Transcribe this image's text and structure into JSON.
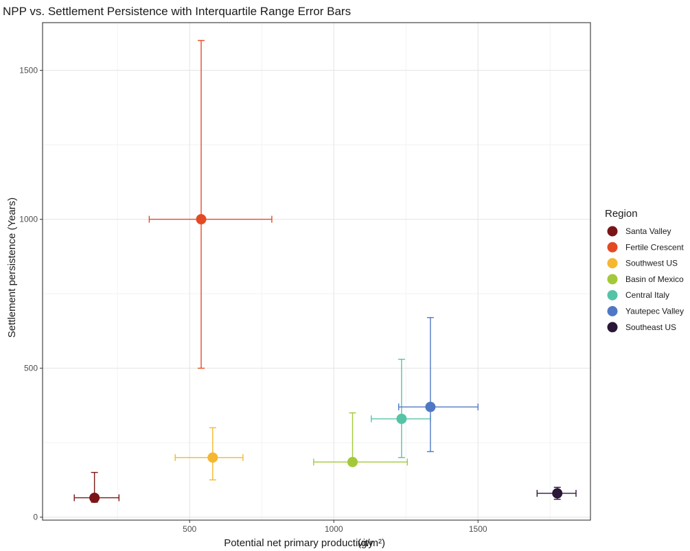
{
  "chart_data": {
    "type": "scatter",
    "title": "NPP vs. Settlement Persistence with Interquartile Range Error Bars",
    "xlabel": "Potential net primary productivity",
    "xlabel_unit": "(g/m²)",
    "ylabel": "Settlement persistence (Years)",
    "xlim": [
      -10,
      1890
    ],
    "ylim": [
      -10,
      1660
    ],
    "x_ticks": [
      500,
      1000,
      1500
    ],
    "y_ticks": [
      0,
      500,
      1000,
      1500
    ],
    "grid": true,
    "legend_title": "Region",
    "legend_position": "right",
    "series": [
      {
        "name": "Santa Valley",
        "color": "#7b1416",
        "x": 170,
        "y": 65,
        "x_low": 100,
        "x_high": 255,
        "y_low": 50,
        "y_high": 150
      },
      {
        "name": "Fertile Crescent",
        "color": "#e34a23",
        "x": 540,
        "y": 1000,
        "x_low": 360,
        "x_high": 785,
        "y_low": 500,
        "y_high": 1600
      },
      {
        "name": "Southwest US",
        "color": "#f5b731",
        "x": 580,
        "y": 200,
        "x_low": 450,
        "x_high": 685,
        "y_low": 125,
        "y_high": 300
      },
      {
        "name": "Basin of Mexico",
        "color": "#a3c93a",
        "x": 1065,
        "y": 185,
        "x_low": 930,
        "x_high": 1255,
        "y_low": 185,
        "y_high": 350
      },
      {
        "name": "Central Italy",
        "color": "#55c3a6",
        "x": 1235,
        "y": 330,
        "x_low": 1130,
        "x_high": 1335,
        "y_low": 200,
        "y_high": 530
      },
      {
        "name": "Yautepec Valley",
        "color": "#4f78c4",
        "x": 1335,
        "y": 370,
        "x_low": 1225,
        "x_high": 1500,
        "y_low": 220,
        "y_high": 670
      },
      {
        "name": "Southeast US",
        "color": "#2a1636",
        "x": 1775,
        "y": 80,
        "x_low": 1705,
        "x_high": 1840,
        "y_low": 60,
        "y_high": 100
      }
    ]
  }
}
